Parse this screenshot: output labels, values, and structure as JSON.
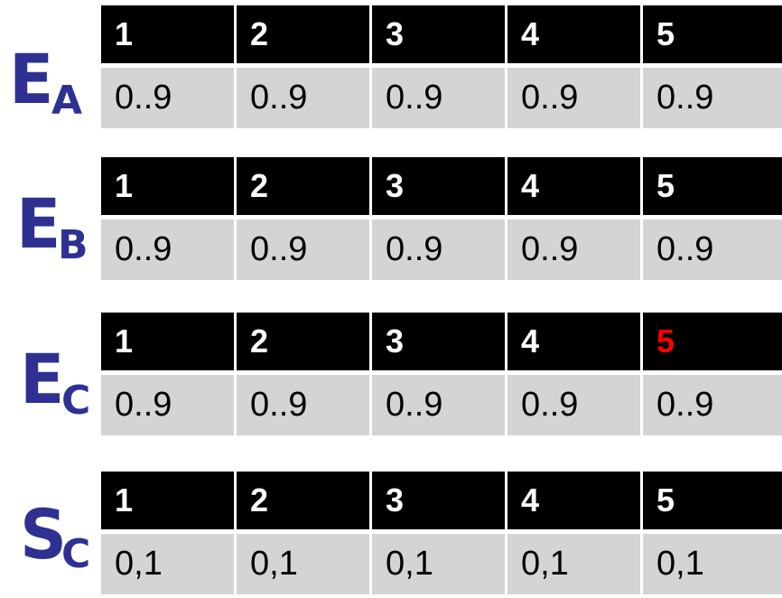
{
  "accent_color": "#2e3192",
  "highlight_color": "#ff0000",
  "blocks": [
    {
      "label_main": "E",
      "label_sub": "A",
      "headers": [
        "1",
        "2",
        "3",
        "4",
        "5"
      ],
      "values": [
        "0..9",
        "0..9",
        "0..9",
        "0..9",
        "0..9"
      ],
      "highlighted_header_index": null
    },
    {
      "label_main": "E",
      "label_sub": "B",
      "headers": [
        "1",
        "2",
        "3",
        "4",
        "5"
      ],
      "values": [
        "0..9",
        "0..9",
        "0..9",
        "0..9",
        "0..9"
      ],
      "highlighted_header_index": null
    },
    {
      "label_main": "E",
      "label_sub": "C",
      "headers": [
        "1",
        "2",
        "3",
        "4",
        "5"
      ],
      "values": [
        "0..9",
        "0..9",
        "0..9",
        "0..9",
        "0..9"
      ],
      "highlighted_header_index": 4
    },
    {
      "label_main": "S",
      "label_sub": "C",
      "headers": [
        "1",
        "2",
        "3",
        "4",
        "5"
      ],
      "values": [
        "0,1",
        "0,1",
        "0,1",
        "0,1",
        "0,1"
      ],
      "highlighted_header_index": null
    }
  ]
}
